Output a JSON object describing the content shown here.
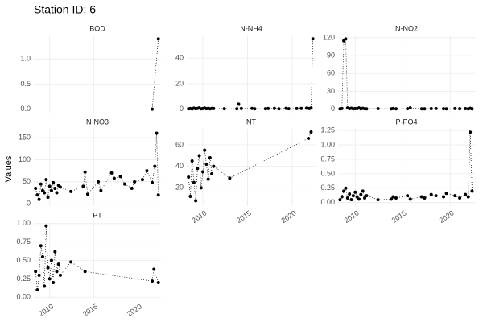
{
  "title": "Station ID: 6",
  "y_label": "Values",
  "chart_data": [
    {
      "type": "scatter",
      "title": "BOD",
      "x": [
        2021.6,
        2022.3
      ],
      "values": [
        0,
        1.4
      ],
      "xlim": [
        2008.2,
        2022.6
      ],
      "xticks": [
        2010,
        2015,
        2020
      ],
      "ylim": [
        -0.07,
        1.47
      ],
      "yticks": [
        {
          "value": 0,
          "label": "0.0"
        },
        {
          "value": 0.5,
          "label": "0.5"
        },
        {
          "value": 1,
          "label": "1.0"
        }
      ],
      "grid": true,
      "show_x_labels": false,
      "color": "#000000"
    },
    {
      "type": "scatter",
      "title": "N-NH4",
      "x": [
        2008.4,
        2008.6,
        2008.8,
        2009.0,
        2009.2,
        2009.4,
        2009.6,
        2009.8,
        2010.0,
        2010.2,
        2010.4,
        2010.6,
        2010.8,
        2011.0,
        2011.2,
        2012.4,
        2013.8,
        2014.0,
        2014.3,
        2015.5,
        2015.8,
        2017.0,
        2017.3,
        2018.0,
        2018.5,
        2019.3,
        2019.6,
        2020.5,
        2021.0,
        2021.6,
        2021.9,
        2022.1,
        2022.3
      ],
      "values": [
        0.3,
        0.5,
        0.2,
        0.8,
        0.4,
        0.6,
        1.0,
        0.3,
        0.5,
        0.9,
        0.4,
        0.7,
        0.3,
        0.6,
        0.5,
        0.4,
        0.3,
        4.0,
        0.5,
        0.6,
        0.3,
        0.4,
        0.5,
        0.6,
        0.3,
        0.7,
        0.4,
        0.5,
        0.6,
        0.8,
        0.5,
        0.9,
        55
      ],
      "xlim": [
        2008.2,
        2022.6
      ],
      "xticks": [
        2010,
        2015,
        2020
      ],
      "ylim": [
        -2.7,
        57.7
      ],
      "yticks": [
        0,
        20,
        40
      ],
      "grid": true,
      "show_x_labels": false,
      "color": "#000000"
    },
    {
      "type": "scatter",
      "title": "N-NO2",
      "x": [
        2008.4,
        2008.6,
        2008.8,
        2009.0,
        2009.2,
        2009.4,
        2009.6,
        2009.8,
        2010.0,
        2010.2,
        2010.4,
        2010.6,
        2010.8,
        2011.0,
        2011.2,
        2012.4,
        2013.8,
        2014.0,
        2014.3,
        2015.5,
        2015.8,
        2017.0,
        2017.3,
        2018.0,
        2018.5,
        2019.3,
        2019.6,
        2020.5,
        2021.0,
        2021.6,
        2021.9,
        2022.1,
        2022.3
      ],
      "values": [
        0.5,
        1,
        115,
        118,
        2,
        0.8,
        1.5,
        0.5,
        1,
        0.8,
        2,
        0.5,
        1.2,
        0.6,
        0.5,
        0.8,
        0.4,
        1,
        0.5,
        0.6,
        2,
        0.4,
        0.5,
        0.8,
        1,
        0.6,
        0.4,
        1,
        0.6,
        0.8,
        0.5,
        1.2,
        0.4
      ],
      "xlim": [
        2008.2,
        2022.6
      ],
      "xticks": [
        2010,
        2015,
        2020
      ],
      "ylim": [
        -6,
        124
      ],
      "yticks": [
        0,
        30,
        60,
        90,
        120
      ],
      "grid": true,
      "show_x_labels": false,
      "color": "#000000"
    },
    {
      "type": "scatter",
      "title": "N-NO3",
      "x": [
        2008.4,
        2008.6,
        2008.8,
        2009.0,
        2009.2,
        2009.4,
        2009.6,
        2009.8,
        2010.0,
        2010.2,
        2010.4,
        2010.6,
        2010.8,
        2011.0,
        2011.2,
        2012.4,
        2013.8,
        2014.0,
        2014.3,
        2015.5,
        2015.8,
        2017.0,
        2017.3,
        2018.0,
        2018.5,
        2019.3,
        2019.6,
        2020.5,
        2021.0,
        2021.6,
        2021.9,
        2022.1,
        2022.3
      ],
      "values": [
        35,
        20,
        10,
        45,
        30,
        25,
        55,
        15,
        40,
        30,
        48,
        35,
        25,
        42,
        38,
        28,
        40,
        72,
        22,
        50,
        30,
        70,
        58,
        62,
        45,
        35,
        50,
        55,
        75,
        48,
        85,
        160,
        20
      ],
      "xlim": [
        2008.2,
        2022.6
      ],
      "xticks": [
        2010,
        2015,
        2020
      ],
      "ylim": [
        -5,
        170
      ],
      "yticks": [
        0,
        50,
        100,
        150
      ],
      "grid": true,
      "show_x_labels": false,
      "color": "#000000"
    },
    {
      "type": "scatter",
      "title": "NT",
      "x": [
        2008.4,
        2008.6,
        2008.8,
        2009.0,
        2009.2,
        2009.4,
        2009.6,
        2009.8,
        2010.0,
        2010.2,
        2010.4,
        2010.6,
        2010.8,
        2011.0,
        2011.2,
        2013.0,
        2021.8,
        2022.1
      ],
      "values": [
        30,
        12,
        45,
        25,
        8,
        38,
        50,
        20,
        35,
        55,
        42,
        28,
        48,
        33,
        40,
        29,
        66,
        72
      ],
      "xlim": [
        2008.2,
        2022.6
      ],
      "xticks": [
        2010,
        2015,
        2020
      ],
      "ylim": [
        3,
        75
      ],
      "yticks": [
        20,
        40,
        60
      ],
      "grid": true,
      "show_x_labels": true,
      "color": "#000000"
    },
    {
      "type": "scatter",
      "title": "P-PO4",
      "x": [
        2008.4,
        2008.6,
        2008.8,
        2009.0,
        2009.2,
        2009.4,
        2009.6,
        2009.8,
        2010.0,
        2010.2,
        2010.4,
        2010.6,
        2010.8,
        2011.0,
        2011.2,
        2012.4,
        2013.8,
        2014.0,
        2014.3,
        2015.5,
        2015.8,
        2017.0,
        2017.3,
        2018.0,
        2018.5,
        2019.3,
        2019.6,
        2020.5,
        2021.0,
        2021.6,
        2021.9,
        2022.1,
        2022.3
      ],
      "values": [
        0.05,
        0.1,
        0.2,
        0.25,
        0.08,
        0.15,
        0.05,
        0.12,
        0.18,
        0.1,
        0.06,
        0.14,
        0.2,
        0.08,
        0.12,
        0.05,
        0.06,
        0.1,
        0.08,
        0.12,
        0.06,
        0.1,
        0.08,
        0.14,
        0.12,
        0.1,
        0.16,
        0.12,
        0.08,
        0.14,
        0.1,
        1.22,
        0.2
      ],
      "xlim": [
        2008.2,
        2022.6
      ],
      "xticks": [
        2010,
        2015,
        2020
      ],
      "ylim": [
        -0.06,
        1.28
      ],
      "yticks": [
        {
          "value": 0,
          "label": "0.00"
        },
        0.25,
        {
          "value": 0.5,
          "label": "0.50"
        },
        0.75,
        {
          "value": 1,
          "label": "1.00"
        },
        1.25
      ],
      "grid": true,
      "show_x_labels": true,
      "color": "#000000"
    },
    {
      "type": "scatter",
      "title": "PT",
      "x": [
        2008.4,
        2008.6,
        2008.8,
        2009.0,
        2009.2,
        2009.4,
        2009.6,
        2009.8,
        2010.0,
        2010.2,
        2010.4,
        2010.6,
        2010.8,
        2011.0,
        2011.2,
        2012.4,
        2014.0,
        2021.6,
        2021.8,
        2022.3
      ],
      "values": [
        0.35,
        0.1,
        0.3,
        0.7,
        0.55,
        0.15,
        0.97,
        0.4,
        0.25,
        0.5,
        0.2,
        0.62,
        0.35,
        0.45,
        0.3,
        0.48,
        0.35,
        0.22,
        0.38,
        0.2
      ],
      "xlim": [
        2008.2,
        2022.6
      ],
      "xticks": [
        2010,
        2015,
        2020
      ],
      "ylim": [
        -0.03,
        1.02
      ],
      "yticks": [
        {
          "value": 0,
          "label": "0.00"
        },
        0.25,
        {
          "value": 0.5,
          "label": "0.50"
        },
        0.75,
        {
          "value": 1,
          "label": "1.00"
        }
      ],
      "grid": true,
      "show_x_labels": true,
      "color": "#000000"
    }
  ]
}
